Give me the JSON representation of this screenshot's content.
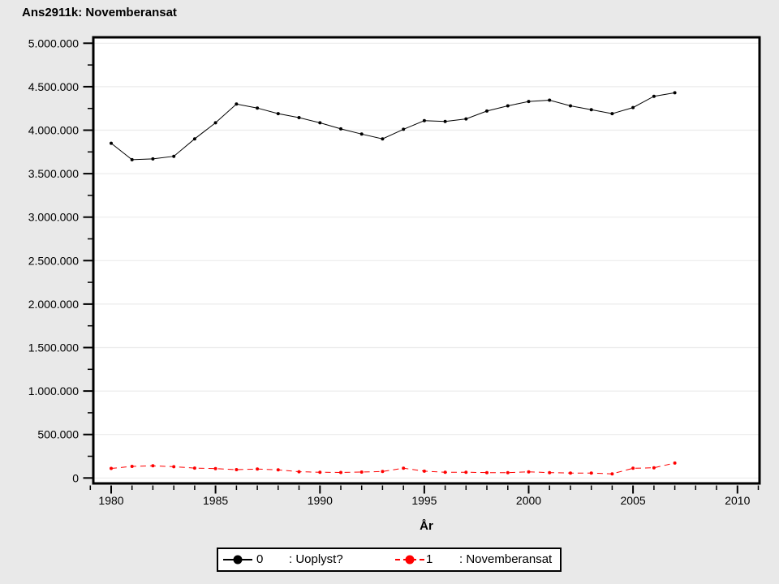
{
  "window": {
    "background": "#e9e9e9",
    "plot_background": "#ffffff",
    "gridline_color": "#ececec"
  },
  "chart_data": {
    "type": "line",
    "title": "Ans2911k: Novemberansat",
    "xlabel": "År",
    "x": [
      1980,
      1981,
      1982,
      1983,
      1984,
      1985,
      1986,
      1987,
      1988,
      1989,
      1990,
      1991,
      1992,
      1993,
      1994,
      1995,
      1996,
      1997,
      1998,
      1999,
      2000,
      2001,
      2002,
      2003,
      2004,
      2005,
      2006,
      2007
    ],
    "series": [
      {
        "name": "0",
        "label": ": Uoplyst?",
        "color": "#000000",
        "line_style": "solid",
        "values": [
          3850000,
          3660000,
          3670000,
          3700000,
          3900000,
          4085000,
          4300000,
          4255000,
          4190000,
          4145000,
          4085000,
          4015000,
          3955000,
          3900000,
          4010000,
          4110000,
          4100000,
          4130000,
          4220000,
          4280000,
          4330000,
          4345000,
          4280000,
          4235000,
          4190000,
          4260000,
          4390000,
          4430000
        ]
      },
      {
        "name": "1",
        "label": ": Novemberansat",
        "color": "#ff0000",
        "line_style": "dashed",
        "values": [
          110000,
          133000,
          140000,
          130000,
          114000,
          108000,
          96000,
          103000,
          93000,
          72000,
          66000,
          63000,
          68000,
          75000,
          113000,
          78000,
          66000,
          66000,
          62000,
          62000,
          71000,
          62000,
          57000,
          57000,
          48000,
          112000,
          118000,
          172000
        ]
      }
    ],
    "xlim": [
      1979,
      2011
    ],
    "ylim": [
      0,
      5000000
    ],
    "x_axis": {
      "tick_values": [
        1980,
        1985,
        1990,
        1995,
        2000,
        2005,
        2010
      ],
      "tick_labels": [
        "1980",
        "1985",
        "1990",
        "1995",
        "2000",
        "2005",
        "2010"
      ],
      "minor_step": 1
    },
    "y_axis": {
      "tick_values": [
        0,
        500000,
        1000000,
        1500000,
        2000000,
        2500000,
        3000000,
        3500000,
        4000000,
        4500000,
        5000000
      ],
      "tick_labels": [
        "0",
        "500.000",
        "1.000.000",
        "1.500.000",
        "2.000.000",
        "2.500.000",
        "3.000.000",
        "3.500.000",
        "4.000.000",
        "4.500.000",
        "5.000.000"
      ],
      "minor_step": 250000
    },
    "grid": "horizontal-major",
    "legend_position": "bottom-center"
  }
}
